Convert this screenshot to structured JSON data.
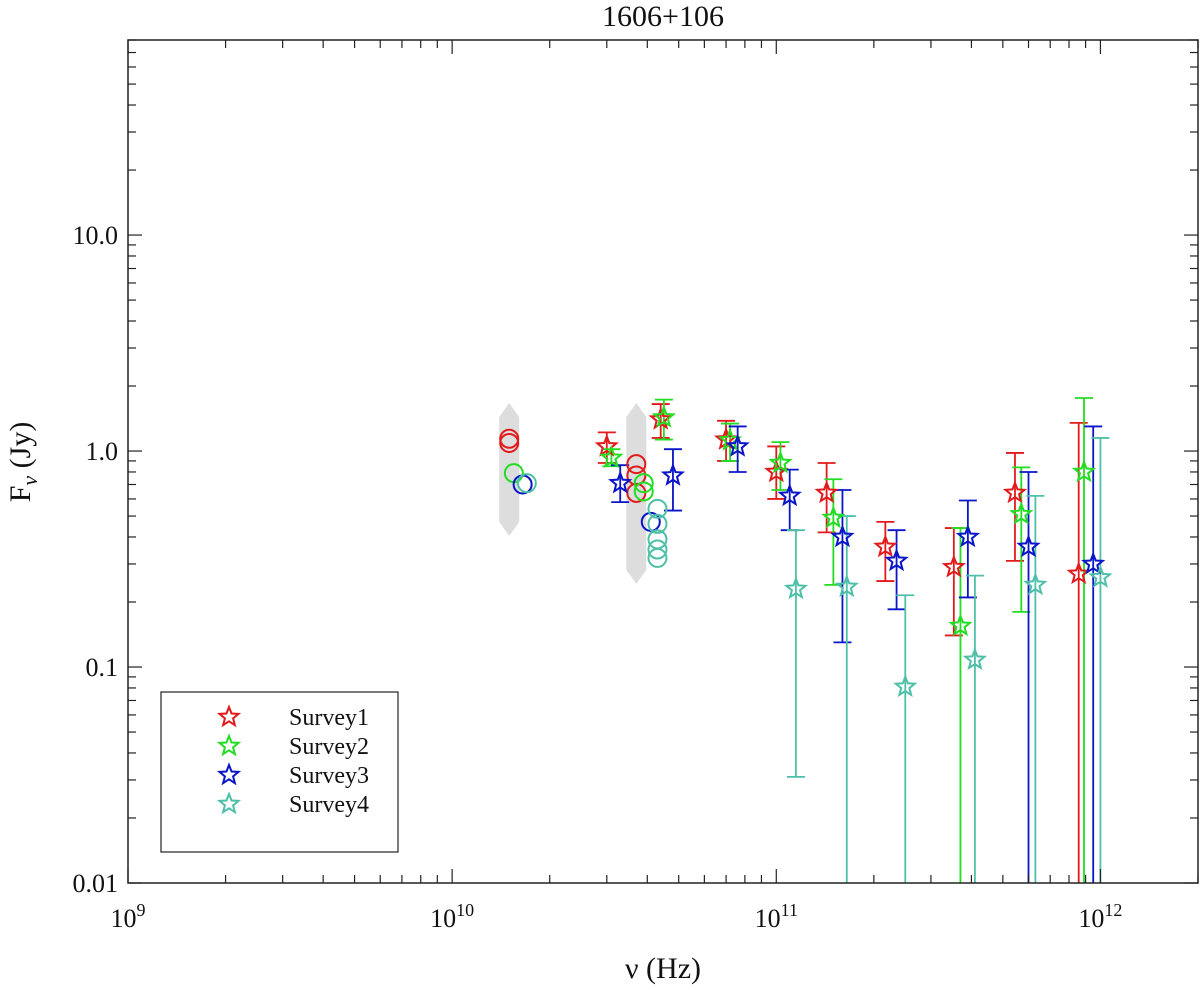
{
  "chart_data": {
    "type": "scatter",
    "title": "1606+106",
    "xlabel": "ν (Hz)",
    "ylabel": "F_ν (Jy)",
    "ylabel_main": "F",
    "ylabel_sub": "ν",
    "ylabel_rest": " (Jy)",
    "xscale": "log",
    "yscale": "log",
    "xlim": [
      1000000000.0,
      2000000000000.0
    ],
    "ylim": [
      0.01,
      80
    ],
    "x_ticks": [
      {
        "value": 1000000000.0,
        "base": "10",
        "exp": "9"
      },
      {
        "value": 10000000000.0,
        "base": "10",
        "exp": "10"
      },
      {
        "value": 100000000000.0,
        "base": "10",
        "exp": "11"
      },
      {
        "value": 1000000000000.0,
        "base": "10",
        "exp": "12"
      }
    ],
    "y_ticks": [
      {
        "value": 0.01,
        "label": "0.01"
      },
      {
        "value": 0.1,
        "label": "0.1"
      },
      {
        "value": 1,
        "label": "1.0"
      },
      {
        "value": 10,
        "label": "10.0"
      }
    ],
    "legend_position": "bottom-left",
    "series": [
      {
        "name": "Survey1",
        "color": "#e31a1c",
        "marker": "star",
        "points": [
          {
            "x": 30000000000.0,
            "y": 1.05,
            "lo": 0.88,
            "hi": 1.22
          },
          {
            "x": 44000000000.0,
            "y": 1.4,
            "lo": 1.15,
            "hi": 1.65
          },
          {
            "x": 70000000000.0,
            "y": 1.13,
            "lo": 0.9,
            "hi": 1.38
          },
          {
            "x": 100000000000.0,
            "y": 0.8,
            "lo": 0.6,
            "hi": 1.05
          },
          {
            "x": 143000000000.0,
            "y": 0.64,
            "lo": 0.42,
            "hi": 0.88
          },
          {
            "x": 217000000000.0,
            "y": 0.36,
            "lo": 0.25,
            "hi": 0.47
          },
          {
            "x": 353000000000.0,
            "y": 0.29,
            "lo": 0.14,
            "hi": 0.44
          },
          {
            "x": 545000000000.0,
            "y": 0.64,
            "lo": 0.31,
            "hi": 0.98
          },
          {
            "x": 857000000000.0,
            "y": 0.27,
            "lo": 0.01,
            "hi": 1.35
          }
        ]
      },
      {
        "name": "Survey2",
        "color": "#22dd22",
        "marker": "star",
        "points": [
          {
            "x": 31000000000.0,
            "y": 0.93,
            "lo": 0.85,
            "hi": 1.02
          },
          {
            "x": 45000000000.0,
            "y": 1.43,
            "lo": 1.13,
            "hi": 1.73
          },
          {
            "x": 72000000000.0,
            "y": 1.12,
            "lo": 0.9,
            "hi": 1.34
          },
          {
            "x": 103000000000.0,
            "y": 0.88,
            "lo": 0.66,
            "hi": 1.1
          },
          {
            "x": 150000000000.0,
            "y": 0.49,
            "lo": 0.24,
            "hi": 0.74
          },
          {
            "x": 370000000000.0,
            "y": 0.155,
            "lo": 0.01,
            "hi": 0.44
          },
          {
            "x": 570000000000.0,
            "y": 0.51,
            "lo": 0.18,
            "hi": 0.84
          },
          {
            "x": 890000000000.0,
            "y": 0.8,
            "lo": 0.01,
            "hi": 1.76
          }
        ]
      },
      {
        "name": "Survey3",
        "color": "#0a14c8",
        "marker": "star",
        "points": [
          {
            "x": 33000000000.0,
            "y": 0.71,
            "lo": 0.58,
            "hi": 0.86
          },
          {
            "x": 48000000000.0,
            "y": 0.77,
            "lo": 0.53,
            "hi": 1.02
          },
          {
            "x": 76000000000.0,
            "y": 1.05,
            "lo": 0.8,
            "hi": 1.3
          },
          {
            "x": 110000000000.0,
            "y": 0.62,
            "lo": 0.43,
            "hi": 0.82
          },
          {
            "x": 160000000000.0,
            "y": 0.4,
            "lo": 0.13,
            "hi": 0.66
          },
          {
            "x": 235000000000.0,
            "y": 0.31,
            "lo": 0.185,
            "hi": 0.43
          },
          {
            "x": 390000000000.0,
            "y": 0.4,
            "lo": 0.21,
            "hi": 0.59
          },
          {
            "x": 600000000000.0,
            "y": 0.36,
            "lo": 0.01,
            "hi": 0.8
          },
          {
            "x": 950000000000.0,
            "y": 0.3,
            "lo": 0.01,
            "hi": 1.3
          }
        ]
      },
      {
        "name": "Survey4",
        "color": "#4ec0a8",
        "marker": "star",
        "points": [
          {
            "x": 115000000000.0,
            "y": 0.23,
            "lo": 0.031,
            "hi": 0.43
          },
          {
            "x": 165000000000.0,
            "y": 0.235,
            "lo": 0.01,
            "hi": 0.5
          },
          {
            "x": 250000000000.0,
            "y": 0.081,
            "lo": 0.01,
            "hi": 0.215
          },
          {
            "x": 410000000000.0,
            "y": 0.108,
            "lo": 0.01,
            "hi": 0.265
          },
          {
            "x": 630000000000.0,
            "y": 0.24,
            "lo": 0.01,
            "hi": 0.62
          },
          {
            "x": 1000000000000.0,
            "y": 0.26,
            "lo": 0.01,
            "hi": 1.15
          }
        ]
      }
    ],
    "circle_points": [
      {
        "x": 15000000000.0,
        "y": 1.14,
        "color": "#e31a1c"
      },
      {
        "x": 15000000000.0,
        "y": 1.09,
        "color": "#e31a1c"
      },
      {
        "x": 15500000000.0,
        "y": 0.79,
        "color": "#22dd22"
      },
      {
        "x": 16500000000.0,
        "y": 0.7,
        "color": "#0a14c8"
      },
      {
        "x": 17000000000.0,
        "y": 0.71,
        "color": "#4ec0a8"
      },
      {
        "x": 37000000000.0,
        "y": 0.87,
        "color": "#e31a1c"
      },
      {
        "x": 37000000000.0,
        "y": 0.77,
        "color": "#e31a1c"
      },
      {
        "x": 37000000000.0,
        "y": 0.64,
        "color": "#e31a1c"
      },
      {
        "x": 39000000000.0,
        "y": 0.71,
        "color": "#22dd22"
      },
      {
        "x": 39000000000.0,
        "y": 0.65,
        "color": "#22dd22"
      },
      {
        "x": 41000000000.0,
        "y": 0.47,
        "color": "#0a14c8"
      },
      {
        "x": 43000000000.0,
        "y": 0.54,
        "color": "#4ec0a8"
      },
      {
        "x": 43000000000.0,
        "y": 0.46,
        "color": "#4ec0a8"
      },
      {
        "x": 43000000000.0,
        "y": 0.39,
        "color": "#4ec0a8"
      },
      {
        "x": 43000000000.0,
        "y": 0.35,
        "color": "#4ec0a8"
      },
      {
        "x": 43000000000.0,
        "y": 0.32,
        "color": "#4ec0a8"
      }
    ],
    "gray_bands": [
      {
        "x": 15000000000.0,
        "lo": 0.45,
        "hi": 1.5,
        "color": "#dddddd"
      },
      {
        "x": 37000000000.0,
        "lo": 0.27,
        "hi": 1.5,
        "color": "#dddddd"
      }
    ]
  }
}
